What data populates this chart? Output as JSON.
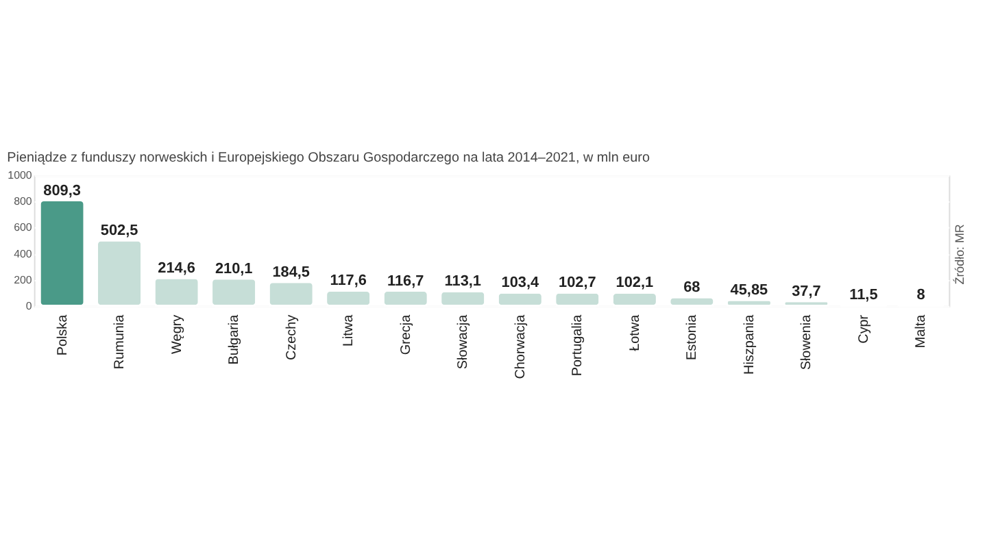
{
  "chart_data": {
    "type": "bar",
    "title": "Pieniądze z funduszy norweskich i Europejskiego Obszaru Gospodarczego na lata 2014–2021, w mln euro",
    "categories": [
      "Polska",
      "Rumunia",
      "Węgry",
      "Bułgaria",
      "Czechy",
      "Litwa",
      "Grecja",
      "Słowacja",
      "Chorwacja",
      "Portugalia",
      "Łotwa",
      "Estonia",
      "Hiszpania",
      "Słowenia",
      "Cypr",
      "Malta"
    ],
    "values": [
      809.3,
      502.5,
      214.6,
      210.1,
      184.5,
      117.6,
      116.7,
      113.1,
      103.4,
      102.7,
      102.1,
      68,
      45.85,
      37.7,
      11.5,
      8
    ],
    "colors": [
      "#4a9a88",
      "#c6ded7",
      "#c6ded7",
      "#c6ded7",
      "#c6ded7",
      "#c6ded7",
      "#c6ded7",
      "#c6ded7",
      "#c6ded7",
      "#c6ded7",
      "#c6ded7",
      "#c6ded7",
      "#c6ded7",
      "#c6ded7",
      "#c6ded7",
      "#c6ded7"
    ],
    "value_labels": [
      "809,3",
      "502,5",
      "214,6",
      "210,1",
      "184,5",
      "117,6",
      "116,7",
      "113,1",
      "103,4",
      "102,7",
      "102,1",
      "68",
      "45,85",
      "37,7",
      "11,5",
      "8"
    ],
    "ylim": [
      0,
      1000
    ],
    "yticks": [
      0,
      200,
      400,
      600,
      800,
      1000
    ],
    "grid": "y",
    "annotations": [
      "Źródło: MR"
    ]
  }
}
